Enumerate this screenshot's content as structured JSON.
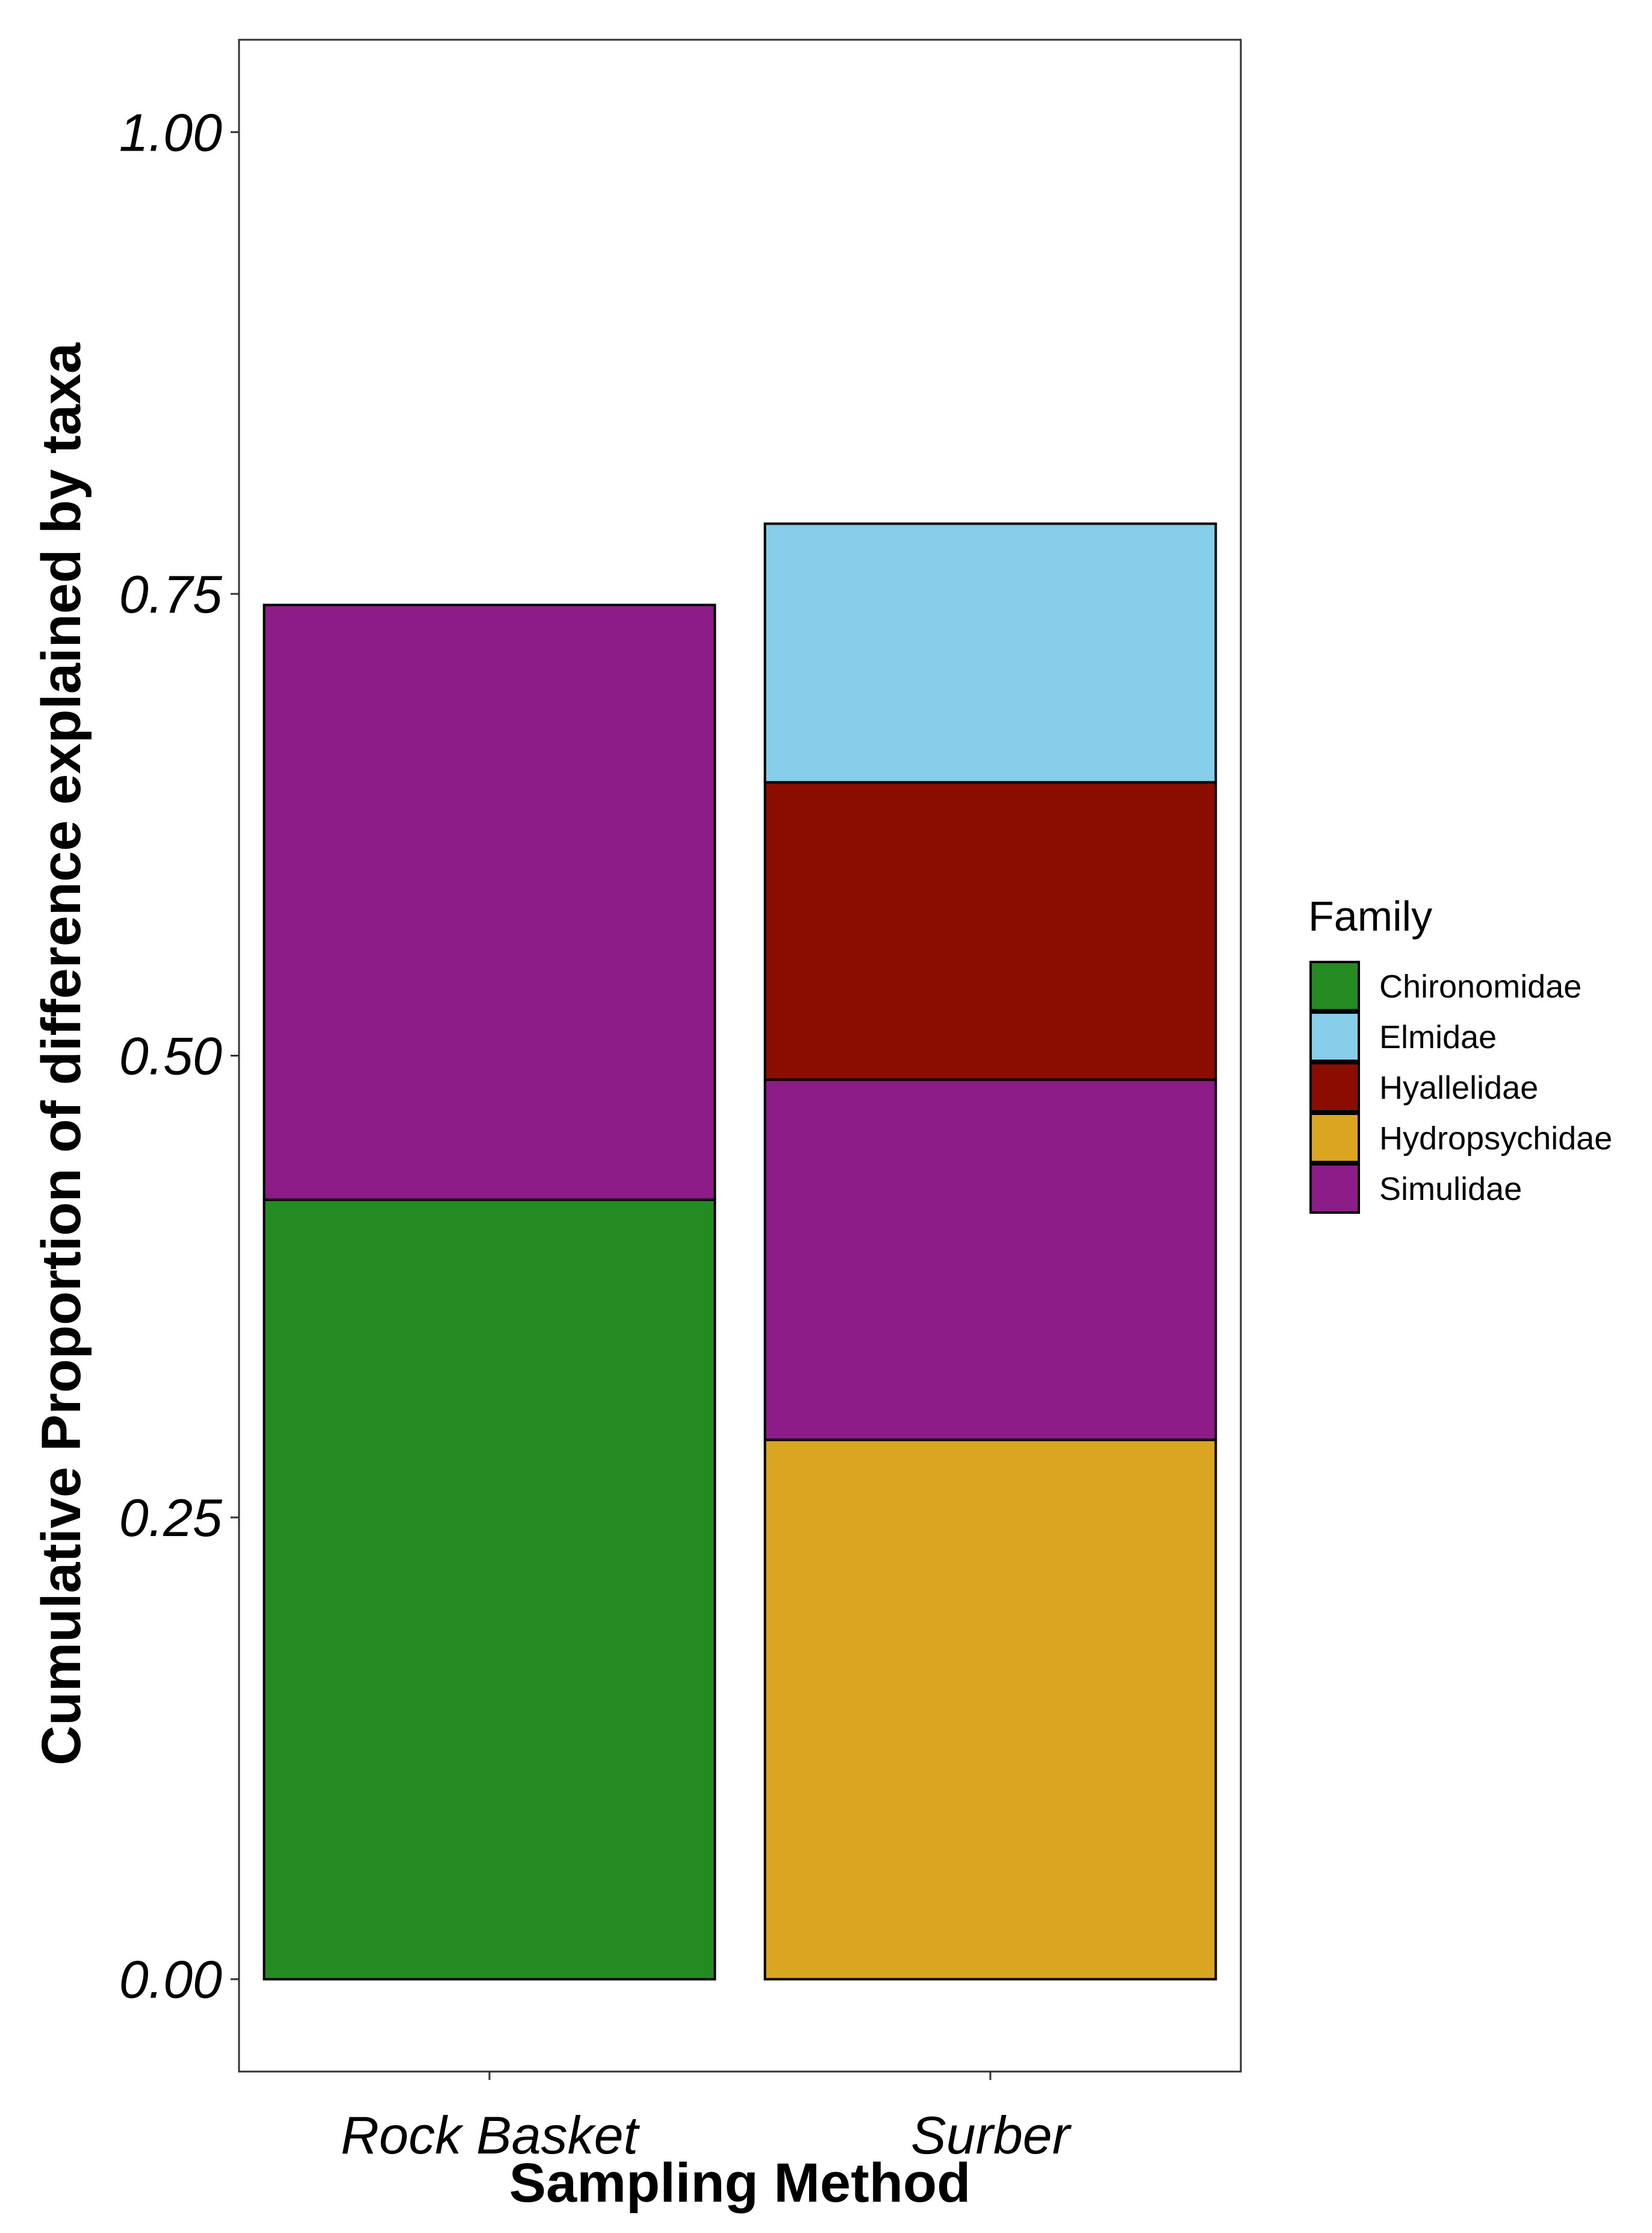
{
  "chart_data": {
    "type": "bar",
    "stacked": true,
    "title": "",
    "xlabel": "Sampling Method",
    "ylabel": "Cumulative Proportion of difference explained by taxa",
    "ylim": [
      -0.05,
      1.05
    ],
    "yticks": [
      "0.00",
      "0.25",
      "0.50",
      "0.75",
      "1.00"
    ],
    "ytick_values": [
      0,
      0.25,
      0.5,
      0.75,
      1.0
    ],
    "categories": [
      "Rock Basket",
      "Surber"
    ],
    "series": [
      {
        "name": "Chironomidae",
        "color": "#238B22",
        "values": [
          0.422,
          0
        ]
      },
      {
        "name": "Hydropsychidae",
        "color": "#DAA521",
        "values": [
          0,
          0.292
        ]
      },
      {
        "name": "Simulidae",
        "color": "#8B1C88",
        "values": [
          0.322,
          0.195
        ]
      },
      {
        "name": "Hyallelidae",
        "color": "#8B0D00",
        "values": [
          0,
          0.161
        ]
      },
      {
        "name": "Elmidae",
        "color": "#87CEEB",
        "values": [
          0,
          0.14
        ]
      }
    ],
    "legend": {
      "title": "Family",
      "position": "right",
      "entries": [
        {
          "label": "Chironomidae",
          "color": "#238B22"
        },
        {
          "label": "Elmidae",
          "color": "#87CEEB"
        },
        {
          "label": "Hyallelidae",
          "color": "#8B0D00"
        },
        {
          "label": "Hydropsychidae",
          "color": "#DAA521"
        },
        {
          "label": "Simulidae",
          "color": "#8B1C88"
        }
      ]
    },
    "grid": false
  }
}
